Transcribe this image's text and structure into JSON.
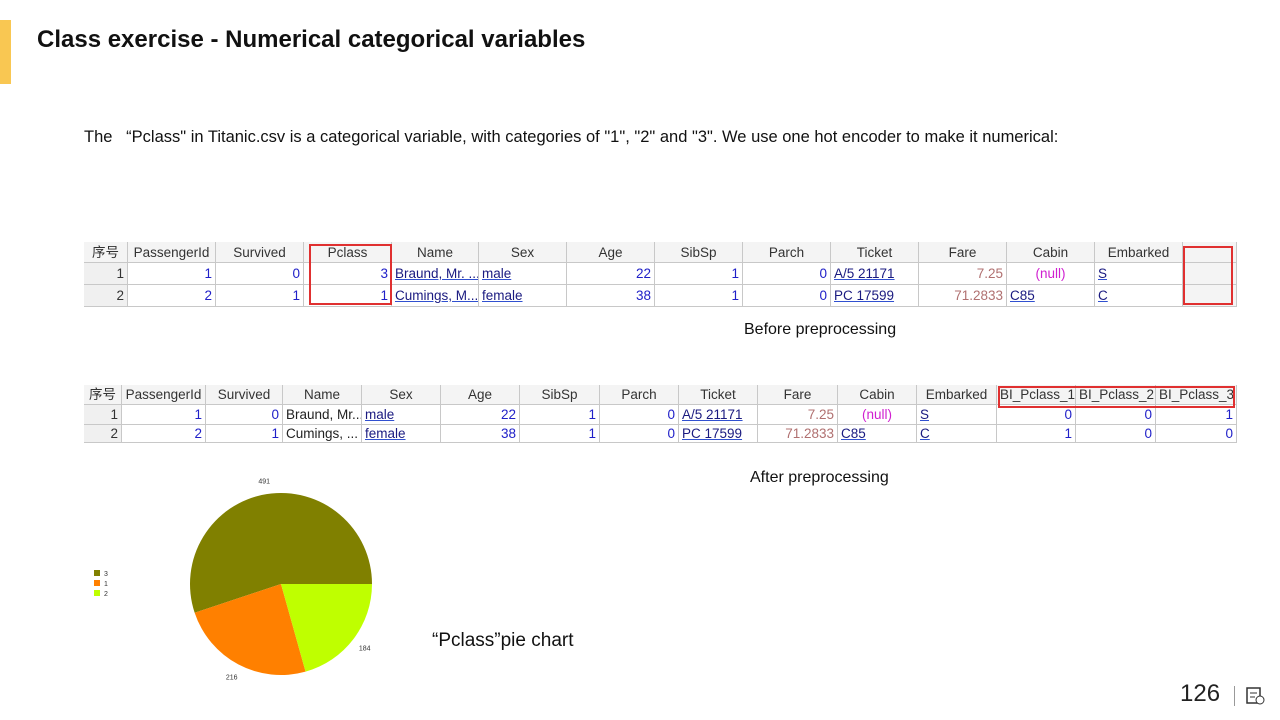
{
  "header": {
    "title": "Class exercise - Numerical categorical variables"
  },
  "intro": "The   “Pclass\" in Titanic.csv is a categorical variable, with categories of \"1\", \"2\" and \"3\". We use one hot encoder to make it numerical:",
  "table_before": {
    "columns": [
      "序号",
      "PassengerId",
      "Survived",
      "Pclass",
      "Name",
      "Sex",
      "Age",
      "SibSp",
      "Parch",
      "Ticket",
      "Fare",
      "Cabin",
      "Embarked"
    ],
    "rows": [
      [
        "1",
        "1",
        "0",
        "3",
        "Braund, Mr. ...",
        "male",
        "22",
        "1",
        "0",
        "A/5 21171",
        "7.25",
        "(null)",
        "S"
      ],
      [
        "2",
        "2",
        "1",
        "1",
        "Cumings, M...",
        "female",
        "38",
        "1",
        "0",
        "PC 17599",
        "71.2833",
        "C85",
        "C"
      ]
    ],
    "caption": "Before preprocessing"
  },
  "table_after": {
    "columns": [
      "序号",
      "PassengerId",
      "Survived",
      "Name",
      "Sex",
      "Age",
      "SibSp",
      "Parch",
      "Ticket",
      "Fare",
      "Cabin",
      "Embarked",
      "BI_Pclass_1",
      "BI_Pclass_2",
      "BI_Pclass_3"
    ],
    "rows": [
      [
        "1",
        "1",
        "0",
        "Braund, Mr....",
        "male",
        "22",
        "1",
        "0",
        "A/5 21171",
        "7.25",
        "(null)",
        "S",
        "0",
        "0",
        "1"
      ],
      [
        "2",
        "2",
        "1",
        "Cumings, ...",
        "female",
        "38",
        "1",
        "0",
        "PC 17599",
        "71.2833",
        "C85",
        "C",
        "1",
        "0",
        "0"
      ]
    ],
    "caption": "After preprocessing"
  },
  "chart_data": {
    "type": "pie",
    "categories": [
      "3",
      "1",
      "2"
    ],
    "values": [
      491,
      216,
      184
    ],
    "colors": [
      "#808000",
      "#ff8000",
      "#bfff00"
    ],
    "legend": "left"
  },
  "pie_caption": "“Pclass”pie chart",
  "page_number": "126"
}
